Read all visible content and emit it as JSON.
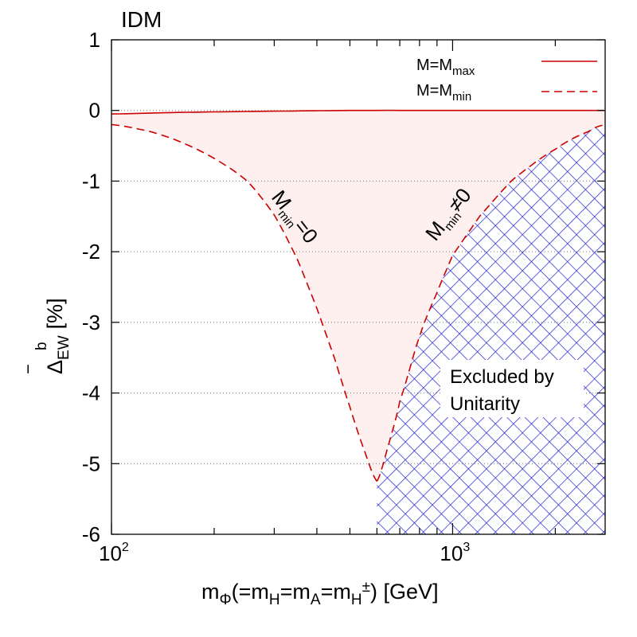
{
  "colors": {
    "curve": "#cc0000",
    "fill": "#fdf0ef",
    "hatch": "#1f1fd0",
    "grid": "#888888"
  },
  "chart_data": {
    "type": "line",
    "title": "IDM",
    "xscale": "log",
    "xlim": [
      100,
      2800
    ],
    "ylim": [
      -6,
      1
    ],
    "xlabel": {
      "m": "m",
      "phi_sub": "Φ",
      "open": "(=m",
      "h_sub": "H",
      "eq1": "=m",
      "a_sub": "A",
      "eq2": "=m",
      "hpm_sub": "H",
      "hpm_sup": "±",
      "close": ") [GeV]"
    },
    "ylabel": {
      "delta": "Δ",
      "bar": "‾",
      "sup": "b",
      "sub": "EW",
      "unit": "[%]"
    },
    "xticks": [
      {
        "base": "10",
        "exp": "2",
        "value": 100
      },
      {
        "base": "10",
        "exp": "3",
        "value": 1000
      }
    ],
    "xminor": [
      200,
      300,
      400,
      500,
      600,
      700,
      800,
      900,
      2000
    ],
    "yticks": [
      {
        "label": "1",
        "value": 1
      },
      {
        "label": "0",
        "value": 0
      },
      {
        "label": "-1",
        "value": -1
      },
      {
        "label": "-2",
        "value": -2
      },
      {
        "label": "-3",
        "value": -3
      },
      {
        "label": "-4",
        "value": -4
      },
      {
        "label": "-5",
        "value": -5
      },
      {
        "label": "-6",
        "value": -6
      }
    ],
    "series": [
      {
        "name": "M=M_max",
        "style": "solid",
        "x": [
          100,
          150,
          200,
          300,
          500,
          1000,
          2800
        ],
        "y": [
          -0.05,
          -0.03,
          -0.02,
          -0.01,
          0,
          0,
          0
        ]
      },
      {
        "name": "M=M_min (M_min=0 branch)",
        "style": "dashed",
        "x": [
          100,
          130,
          160,
          200,
          250,
          300,
          350,
          400,
          450,
          500,
          550,
          600
        ],
        "y": [
          -0.2,
          -0.3,
          -0.45,
          -0.68,
          -1.0,
          -1.48,
          -2.1,
          -2.8,
          -3.5,
          -4.2,
          -4.8,
          -5.25
        ]
      },
      {
        "name": "M=M_min (M_min≠0 branch)",
        "style": "dashed",
        "x": [
          600,
          650,
          700,
          800,
          900,
          1000,
          1200,
          1500,
          2000,
          2500,
          2800
        ],
        "y": [
          -5.25,
          -4.72,
          -4.12,
          -3.2,
          -2.58,
          -2.05,
          -1.5,
          -0.98,
          -0.55,
          -0.3,
          -0.2
        ]
      }
    ],
    "legend": [
      {
        "base": "M=M",
        "sub": "max",
        "style": "solid"
      },
      {
        "base": "M=M",
        "sub": "min",
        "style": "dashed"
      }
    ],
    "annotations": {
      "left": {
        "base": "M",
        "sub": "min",
        "rest": "=0"
      },
      "right": {
        "base": "M",
        "sub": "min",
        "rest": "≠0"
      },
      "excluded_line1": "Excluded by",
      "excluded_line2": "Unitarity"
    }
  }
}
